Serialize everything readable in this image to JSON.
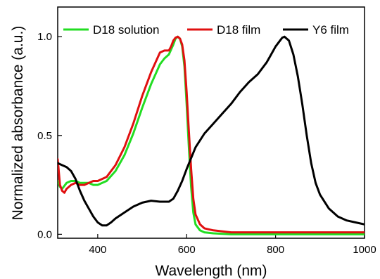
{
  "chart_data": {
    "type": "line",
    "xlabel": "Wavelength (nm)",
    "ylabel": "Normalized absorbance (a.u.)",
    "xlim": [
      310,
      1000
    ],
    "ylim": [
      -0.02,
      1.15
    ],
    "xticks": [
      400,
      600,
      800,
      1000
    ],
    "xtick_labels": [
      "400",
      "600",
      "800",
      "1000"
    ],
    "yticks": [
      0.0,
      0.5,
      1.0
    ],
    "ytick_labels": [
      "0.0",
      "0.5",
      "1.0"
    ],
    "legend_position": "top",
    "grid": false,
    "series": [
      {
        "name": "D18 solution",
        "color": "#22dd22",
        "x": [
          310,
          315,
          320,
          330,
          340,
          350,
          360,
          370,
          380,
          390,
          400,
          410,
          420,
          440,
          460,
          480,
          500,
          520,
          540,
          550,
          560,
          570,
          575,
          580,
          585,
          590,
          595,
          600,
          605,
          610,
          615,
          620,
          630,
          640,
          660,
          700,
          800,
          900,
          1000
        ],
        "y": [
          0.27,
          0.24,
          0.23,
          0.26,
          0.27,
          0.27,
          0.26,
          0.26,
          0.26,
          0.25,
          0.25,
          0.26,
          0.27,
          0.32,
          0.4,
          0.51,
          0.64,
          0.76,
          0.86,
          0.89,
          0.91,
          0.96,
          0.99,
          1.0,
          0.99,
          0.95,
          0.85,
          0.66,
          0.44,
          0.24,
          0.11,
          0.05,
          0.02,
          0.01,
          0.005,
          0.0,
          0.0,
          0.0,
          0.0
        ]
      },
      {
        "name": "D18 film",
        "color": "#e01010",
        "x": [
          310,
          315,
          320,
          325,
          330,
          340,
          350,
          360,
          370,
          380,
          390,
          400,
          410,
          420,
          440,
          460,
          480,
          500,
          520,
          540,
          550,
          560,
          565,
          570,
          575,
          580,
          585,
          590,
          595,
          600,
          605,
          610,
          615,
          620,
          630,
          640,
          660,
          700,
          750,
          800,
          900,
          1000
        ],
        "y": [
          0.38,
          0.25,
          0.22,
          0.21,
          0.23,
          0.25,
          0.26,
          0.25,
          0.25,
          0.26,
          0.27,
          0.27,
          0.28,
          0.29,
          0.35,
          0.44,
          0.56,
          0.7,
          0.82,
          0.92,
          0.93,
          0.93,
          0.95,
          0.98,
          0.995,
          1.0,
          0.99,
          0.96,
          0.88,
          0.72,
          0.52,
          0.33,
          0.18,
          0.1,
          0.05,
          0.03,
          0.02,
          0.01,
          0.01,
          0.01,
          0.01,
          0.01
        ]
      },
      {
        "name": "Y6 film",
        "color": "#000000",
        "x": [
          310,
          320,
          330,
          340,
          350,
          360,
          370,
          380,
          390,
          400,
          410,
          420,
          430,
          440,
          460,
          480,
          500,
          520,
          540,
          560,
          570,
          580,
          590,
          600,
          620,
          640,
          660,
          680,
          700,
          720,
          740,
          760,
          780,
          790,
          800,
          810,
          815,
          820,
          825,
          830,
          840,
          850,
          860,
          870,
          880,
          890,
          900,
          920,
          940,
          960,
          980,
          1000
        ],
        "y": [
          0.36,
          0.35,
          0.34,
          0.32,
          0.28,
          0.22,
          0.17,
          0.13,
          0.09,
          0.06,
          0.045,
          0.045,
          0.06,
          0.08,
          0.11,
          0.14,
          0.16,
          0.17,
          0.165,
          0.165,
          0.18,
          0.22,
          0.27,
          0.33,
          0.44,
          0.51,
          0.56,
          0.61,
          0.66,
          0.72,
          0.77,
          0.81,
          0.87,
          0.91,
          0.95,
          0.98,
          0.995,
          1.0,
          0.99,
          0.98,
          0.91,
          0.8,
          0.66,
          0.5,
          0.36,
          0.26,
          0.2,
          0.13,
          0.09,
          0.07,
          0.06,
          0.05
        ]
      }
    ]
  }
}
